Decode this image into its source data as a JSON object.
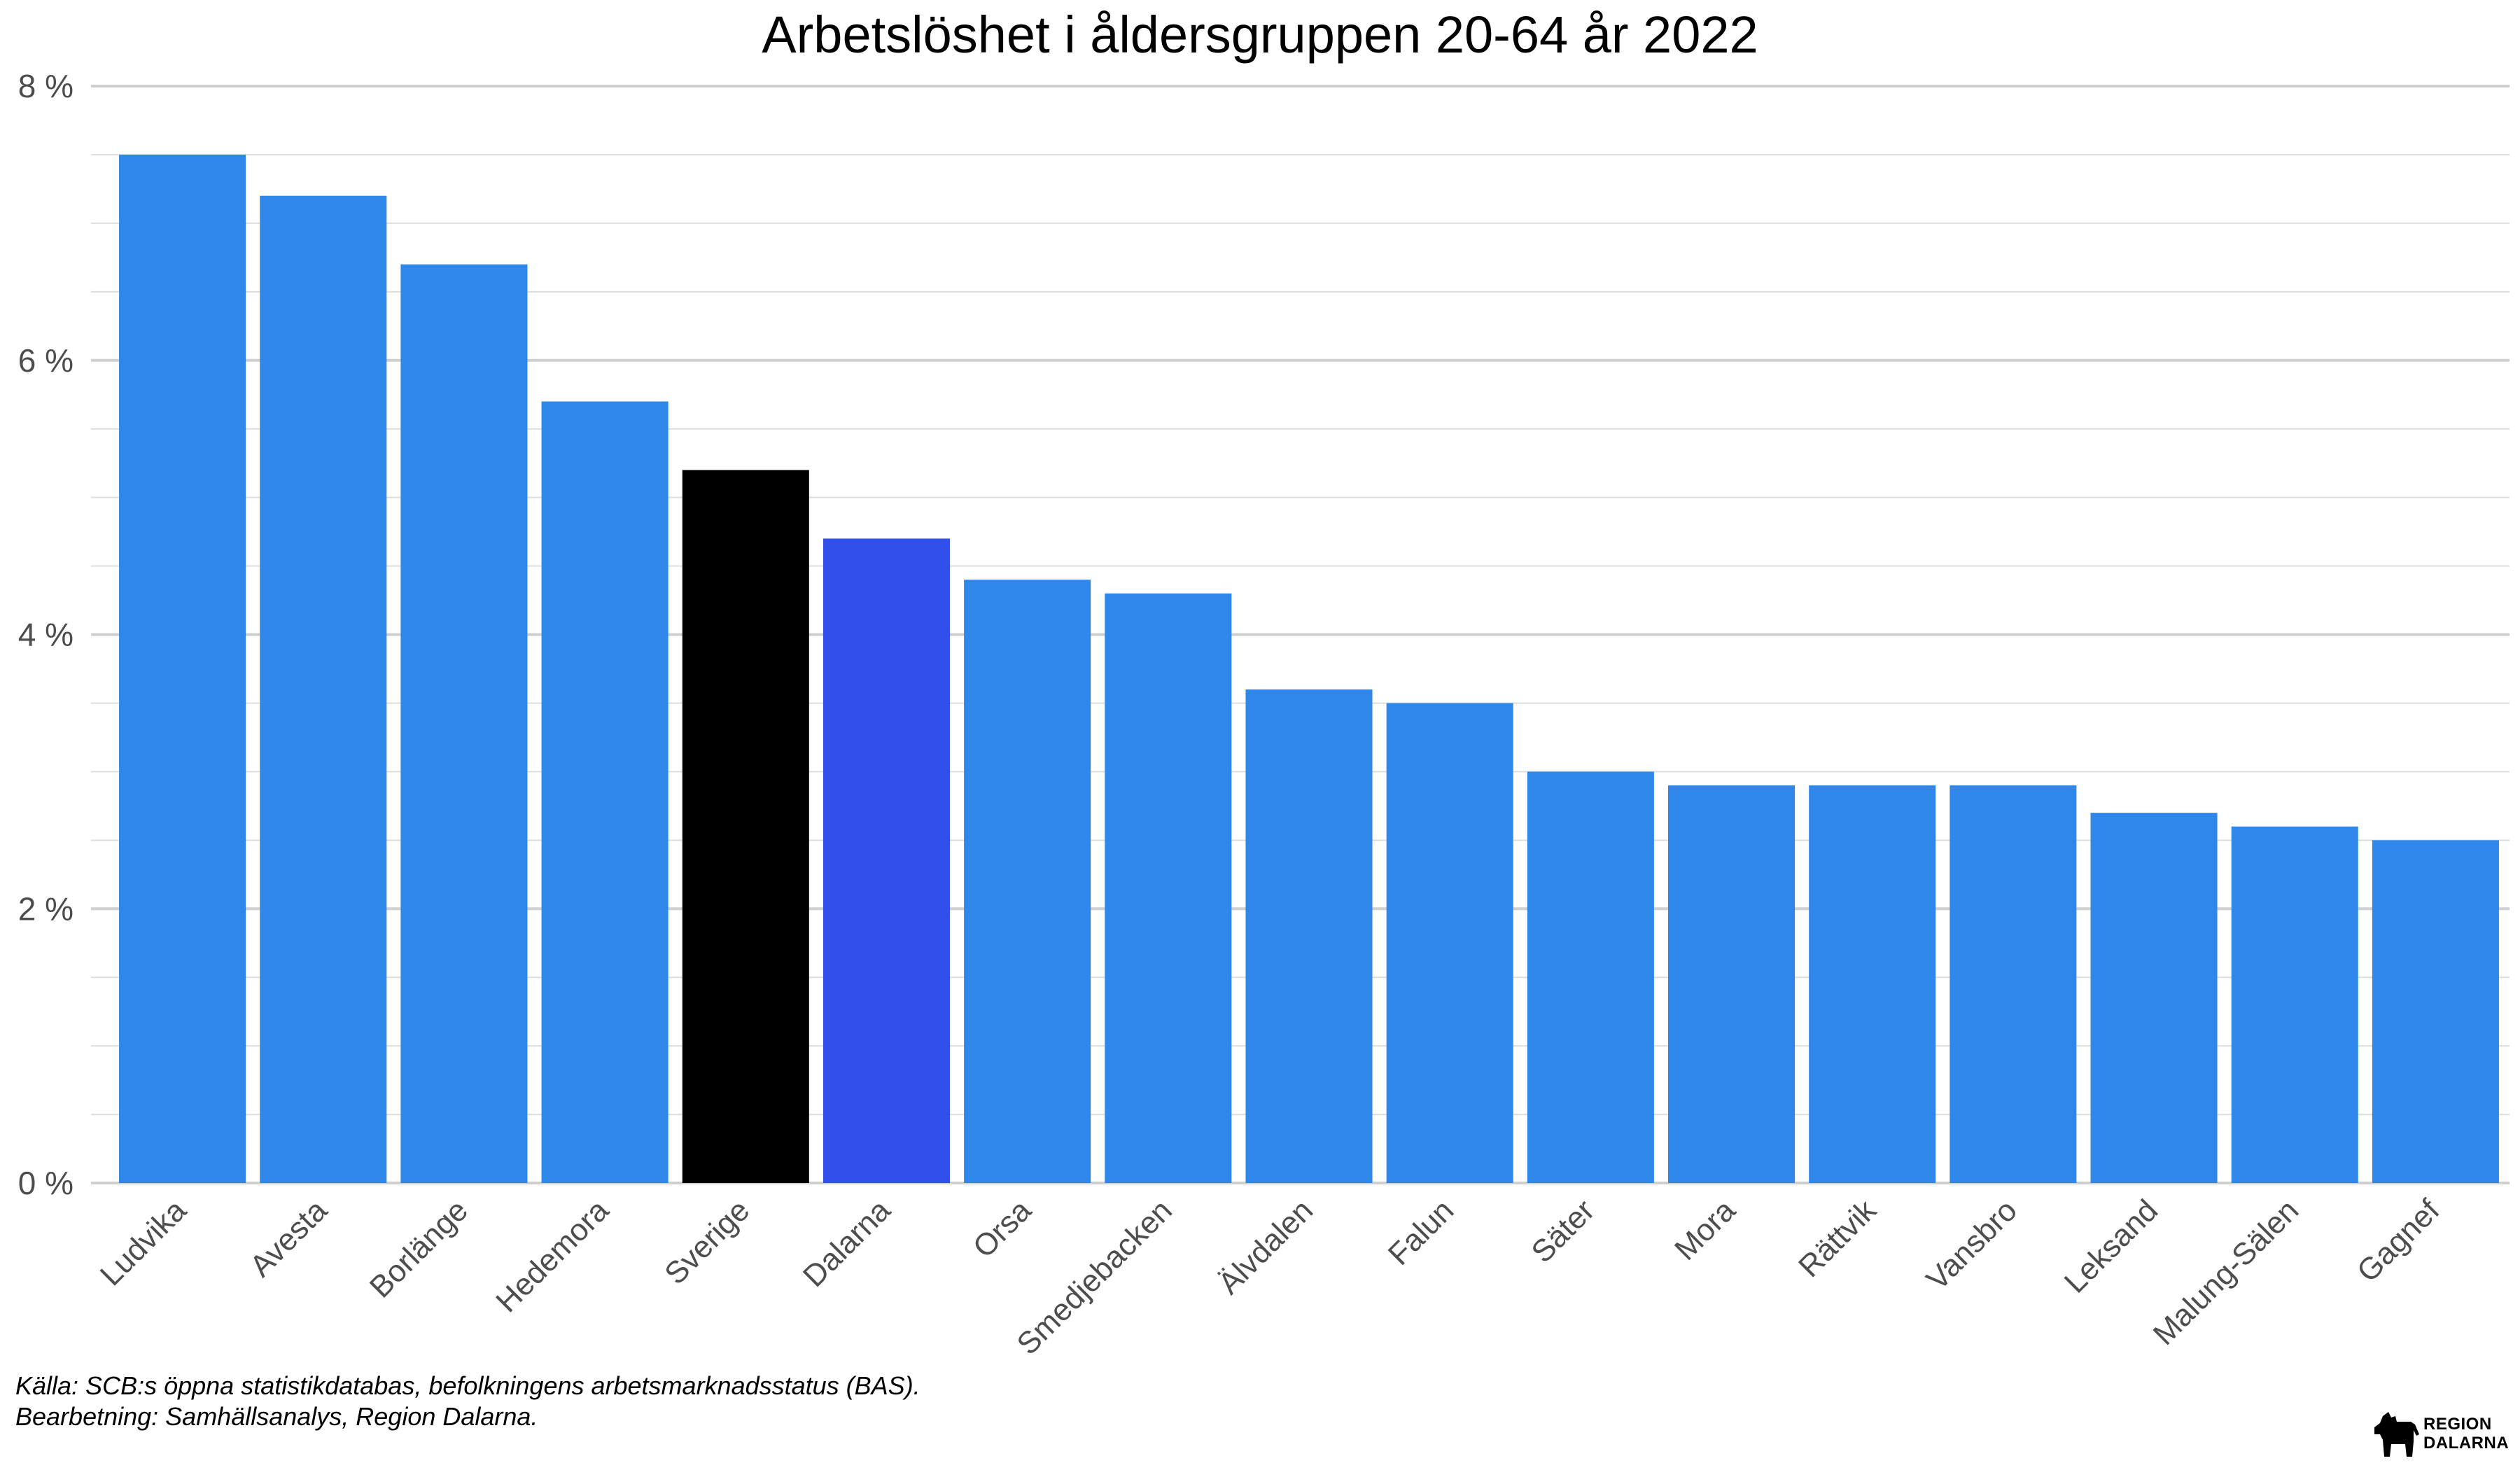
{
  "chart_data": {
    "type": "bar",
    "title": "Arbetslöshet i åldersgruppen 20-64 år 2022",
    "xlabel": "",
    "ylabel": "",
    "ylim": [
      0,
      8
    ],
    "yticks": [
      0,
      2,
      4,
      6,
      8
    ],
    "ytick_labels": [
      "0 %",
      "2 %",
      "4 %",
      "6 %",
      "8 %"
    ],
    "grid": true,
    "categories": [
      "Ludvika",
      "Avesta",
      "Borlänge",
      "Hedemora",
      "Sverige",
      "Dalarna",
      "Orsa",
      "Smedjebacken",
      "Älvdalen",
      "Falun",
      "Säter",
      "Mora",
      "Rättvik",
      "Vansbro",
      "Leksand",
      "Malung-Sälen",
      "Gagnef"
    ],
    "values": [
      7.5,
      7.2,
      6.7,
      5.7,
      5.2,
      4.7,
      4.4,
      4.3,
      3.6,
      3.5,
      3.0,
      2.9,
      2.9,
      2.9,
      2.7,
      2.6,
      2.5
    ],
    "colors": [
      "#3087ea",
      "#3087ea",
      "#3087ea",
      "#3087ea",
      "#000000",
      "#314fea",
      "#3087ea",
      "#3087ea",
      "#3087ea",
      "#3087ea",
      "#3087ea",
      "#3087ea",
      "#3087ea",
      "#3087ea",
      "#3087ea",
      "#3087ea",
      "#3087ea"
    ]
  },
  "caption": {
    "source": "Källa: SCB:s öppna statistikdatabas, befolkningens arbetsmarknadsstatus (BAS).",
    "processing": "Bearbetning: Samhällsanalys, Region Dalarna."
  },
  "logo": {
    "line1": "REGION",
    "line2": "DALARNA",
    "icon": "dala-horse-icon"
  }
}
